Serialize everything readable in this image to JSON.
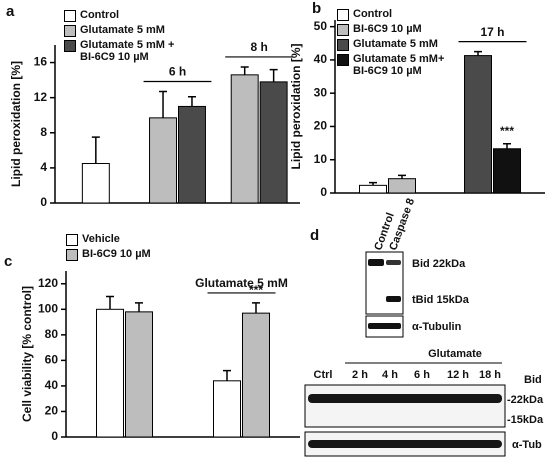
{
  "chart_data": [
    {
      "type": "bar",
      "label": "a",
      "y_label": "Lipid peroxidation [%]",
      "categories": [
        null,
        "6 h",
        "8 h"
      ],
      "series": [
        {
          "name": "Control",
          "color": "#ffffff",
          "values": [
            4.5,
            null,
            null
          ],
          "errors": [
            3,
            null,
            null
          ]
        },
        {
          "name": "Glutamate 5 mM",
          "color": "#bdbdbd",
          "values": [
            null,
            9.7,
            14.6
          ],
          "errors": [
            null,
            3,
            0.9
          ]
        },
        {
          "name": "Glutamate 5 mM + BI-6C9 10 µM",
          "color": "#4a4a4a",
          "values": [
            null,
            11,
            13.8
          ],
          "errors": [
            null,
            1.1,
            1.4
          ]
        }
      ],
      "ylim": [
        0,
        18
      ],
      "yticks": [
        0,
        4,
        8,
        12,
        16
      ]
    },
    {
      "type": "bar",
      "label": "b",
      "y_label": "Lipid peroxidation [%]",
      "categories": [
        null,
        "17 h"
      ],
      "series": [
        {
          "name": "Control",
          "color": "#ffffff",
          "values": [
            2.3,
            null
          ],
          "errors": [
            0.8,
            null
          ]
        },
        {
          "name": "BI-6C9 10 µM",
          "color": "#bdbdbd",
          "values": [
            4.3,
            null
          ],
          "errors": [
            1,
            null
          ]
        },
        {
          "name": "Glutamate 5 mM",
          "color": "#4a4a4a",
          "values": [
            null,
            41.3
          ],
          "errors": [
            null,
            1.2
          ]
        },
        {
          "name": "Glutamate 5 mM+ BI-6C9 10 µM",
          "color": "#111111",
          "values": [
            null,
            13.3
          ],
          "errors": [
            null,
            1.5
          ]
        }
      ],
      "annotations": [
        "***"
      ],
      "ylim": [
        0,
        52
      ],
      "yticks": [
        0,
        10,
        20,
        30,
        40,
        50
      ]
    },
    {
      "type": "bar",
      "label": "c",
      "y_label": "Cell viability [% control]",
      "categories": [
        null,
        "Glutamate 5 mM"
      ],
      "series": [
        {
          "name": "Vehicle",
          "color": "#ffffff",
          "values": [
            100,
            44
          ],
          "errors": [
            10,
            8
          ]
        },
        {
          "name": "BI-6C9 10 µM",
          "color": "#bdbdbd",
          "values": [
            98,
            97
          ],
          "errors": [
            7,
            8
          ]
        }
      ],
      "annotations": [
        "***"
      ],
      "ylim": [
        0,
        130
      ],
      "yticks": [
        0,
        20,
        40,
        60,
        80,
        100,
        120
      ]
    }
  ],
  "blot": {
    "label": "d",
    "top": {
      "lanes": [
        "Control",
        "Caspase 8"
      ],
      "bands": [
        "Bid 22kDa",
        "tBid 15kDa"
      ],
      "loading": "α-Tubulin"
    },
    "bottom": {
      "treatment": "Glutamate",
      "lanes": [
        "Ctrl",
        "2 h",
        "4 h",
        "6 h",
        "12 h",
        "18 h"
      ],
      "protein": "Bid",
      "markers": [
        "-22kDa",
        "-15kDa"
      ],
      "loading": "α-Tub"
    }
  }
}
